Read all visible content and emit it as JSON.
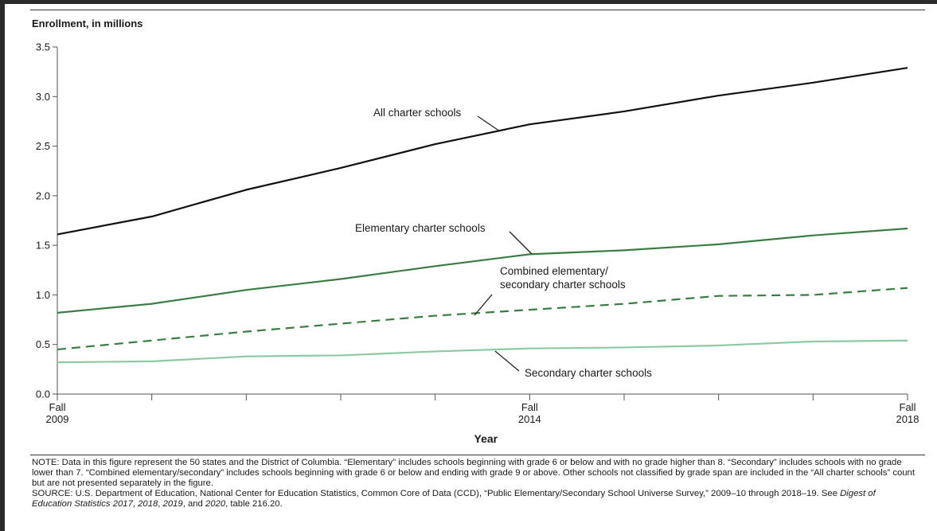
{
  "chart_data": {
    "type": "line",
    "ylabel": "Enrollment, in millions",
    "xlabel": "Year",
    "ylim": [
      0,
      3.5
    ],
    "yticks": [
      "0.0",
      "0.5",
      "1.0",
      "1.5",
      "2.0",
      "2.5",
      "3.0",
      "3.5"
    ],
    "x": [
      2009,
      2010,
      2011,
      2012,
      2013,
      2014,
      2015,
      2016,
      2017,
      2018
    ],
    "xtick_labels": [
      {
        "year": 2009,
        "line1": "Fall",
        "line2": "2009"
      },
      {
        "year": 2014,
        "line1": "Fall",
        "line2": "2014"
      },
      {
        "year": 2018,
        "line1": "Fall",
        "line2": "2018"
      }
    ],
    "grid": false,
    "series": [
      {
        "name": "All charter schools",
        "style": "solid",
        "color": "#111111",
        "values": [
          1.61,
          1.79,
          2.06,
          2.28,
          2.52,
          2.72,
          2.85,
          3.01,
          3.14,
          3.29
        ]
      },
      {
        "name": "Elementary charter schools",
        "style": "solid",
        "color": "#3a7d44",
        "values": [
          0.82,
          0.91,
          1.05,
          1.16,
          1.29,
          1.41,
          1.45,
          1.51,
          1.6,
          1.67
        ]
      },
      {
        "name": "Combined elementary/ secondary charter schools",
        "style": "dashed",
        "color": "#3a7d44",
        "values": [
          0.45,
          0.54,
          0.63,
          0.71,
          0.79,
          0.85,
          0.91,
          0.99,
          1.0,
          1.07
        ]
      },
      {
        "name": "Secondary charter schools",
        "style": "solid",
        "color": "#8cc9a5",
        "values": [
          0.32,
          0.33,
          0.38,
          0.39,
          0.43,
          0.46,
          0.47,
          0.49,
          0.53,
          0.54
        ]
      }
    ],
    "annotations": [
      {
        "series": "All charter schools",
        "lines": [
          "All charter schools"
        ]
      },
      {
        "series": "Elementary charter schools",
        "lines": [
          "Elementary charter schools"
        ]
      },
      {
        "series": "Combined elementary/ secondary charter schools",
        "lines": [
          "Combined elementary/",
          "secondary charter schools"
        ]
      },
      {
        "series": "Secondary charter schools",
        "lines": [
          "Secondary charter schools"
        ]
      }
    ]
  },
  "note": {
    "note_text": "NOTE: Data in this figure represent the 50 states and the District of Columbia. “Elementary” includes schools beginning with grade 6 or below and with no grade higher than 8. “Secondary” includes schools with no grade lower than 7. “Combined elementary/secondary” includes schools beginning with grade 6 or below and ending with grade 9 or above. Other schools not classified by grade span are included in the “All charter schools” count but are not presented separately in the figure.",
    "source_prefix": "SOURCE: U.S. Department of Education, National Center for Education Statistics, Common Core of Data (CCD), “Public Elementary/Secondary School Universe Survey,” 2009–10 through 2018–19. See ",
    "source_italic": "Digest of Education Statistics 2017",
    "source_sep1": ", ",
    "source_italic2": "2018",
    "source_sep2": ", ",
    "source_italic3": "2019",
    "source_sep3": ", and ",
    "source_italic4": "2020",
    "source_suffix": ", table 216.20."
  }
}
